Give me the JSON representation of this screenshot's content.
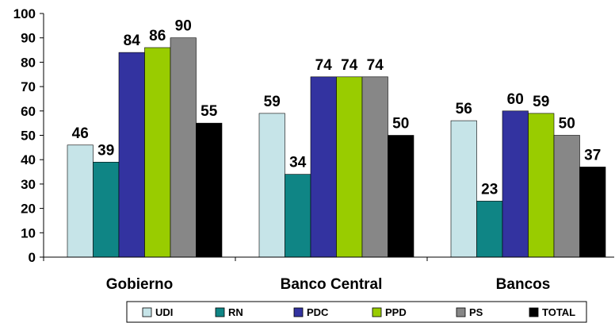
{
  "chart_data": {
    "type": "bar",
    "categories": [
      "Gobierno",
      "Banco Central",
      "Bancos"
    ],
    "series": [
      {
        "name": "UDI",
        "color": "#C6E4E8",
        "values": [
          46,
          59,
          56
        ]
      },
      {
        "name": "RN",
        "color": "#0F8585",
        "values": [
          39,
          34,
          23
        ]
      },
      {
        "name": "PDC",
        "color": "#3333A0",
        "values": [
          84,
          74,
          60
        ]
      },
      {
        "name": "PPD",
        "color": "#99CC00",
        "values": [
          86,
          74,
          59
        ]
      },
      {
        "name": "PS",
        "color": "#878787",
        "values": [
          90,
          74,
          50
        ]
      },
      {
        "name": "TOTAL",
        "color": "#000000",
        "values": [
          55,
          50,
          37
        ]
      }
    ],
    "ylim": [
      0,
      100
    ],
    "yticks": [
      "0",
      "10",
      "20",
      "30",
      "40",
      "50",
      "60",
      "70",
      "80",
      "90",
      "100"
    ],
    "grid": false,
    "legend_position": "bottom",
    "title": "",
    "xlabel": "",
    "ylabel": ""
  }
}
